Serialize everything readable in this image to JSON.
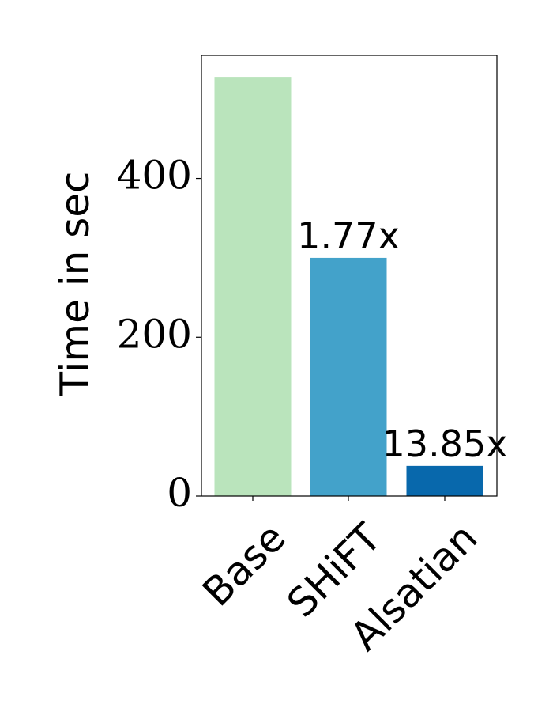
{
  "chart_data": {
    "type": "bar",
    "categories": [
      "Base",
      "SHiFT",
      "Alsatian"
    ],
    "values": [
      528,
      300,
      38
    ],
    "bar_labels": [
      "",
      "1.77x",
      "13.85x"
    ],
    "colors": [
      "#bae4bc",
      "#43a2ca",
      "#0868ac"
    ],
    "ylabel": "Time in sec",
    "yticks": [
      0,
      200,
      400
    ],
    "ylim": [
      0,
      555
    ],
    "grid": false,
    "xtick_rotation_deg": -45
  }
}
